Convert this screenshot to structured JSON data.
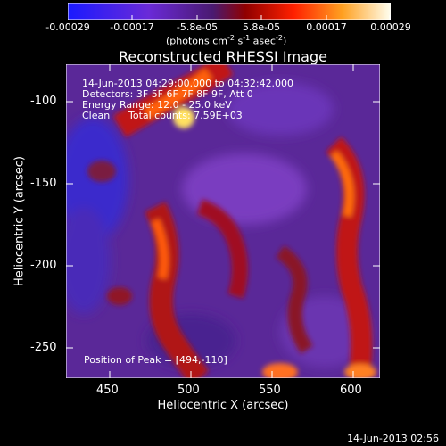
{
  "colorbar": {
    "tick_labels": [
      "-0.00029",
      "-0.00017",
      "-5.8e-05",
      "5.8e-05",
      "0.00017",
      "0.00029"
    ],
    "unit_text": "(photons cm⁻² s⁻¹ asec⁻²)",
    "unit_base": "(photons cm",
    "unit_parts": [
      "-2",
      " s",
      "-1",
      " asec",
      "-2",
      ")"
    ],
    "colors": [
      "#1a1aff",
      "#7a2fd0",
      "#5a1f80",
      "#b01010",
      "#ff5000",
      "#ffd040",
      "#fffbe0"
    ]
  },
  "title": "Reconstructed RHESSI Image",
  "annotations": {
    "line1": "14-Jun-2013 04:29:00.000 to 04:32:42.000",
    "line2": "Detectors: 3F 5F 6F 7F 8F 9F, Att 0",
    "line3": "Energy Range: 12.0 - 25.0 keV",
    "line4_left": "Clean",
    "line4_right": "Total counts: 7.59E+03",
    "peak": "Position of Peak = [494,-110]"
  },
  "axes": {
    "xlabel": "Heliocentric X (arcsec)",
    "ylabel": "Heliocentric Y (arcsec)",
    "x_ticks": [
      "450",
      "500",
      "550",
      "600"
    ],
    "y_ticks": [
      "-100",
      "-150",
      "-200",
      "-250"
    ],
    "xlim": [
      423,
      616
    ],
    "ylim": [
      -269,
      -78
    ]
  },
  "timestamp": "14-Jun-2013 02:56"
}
